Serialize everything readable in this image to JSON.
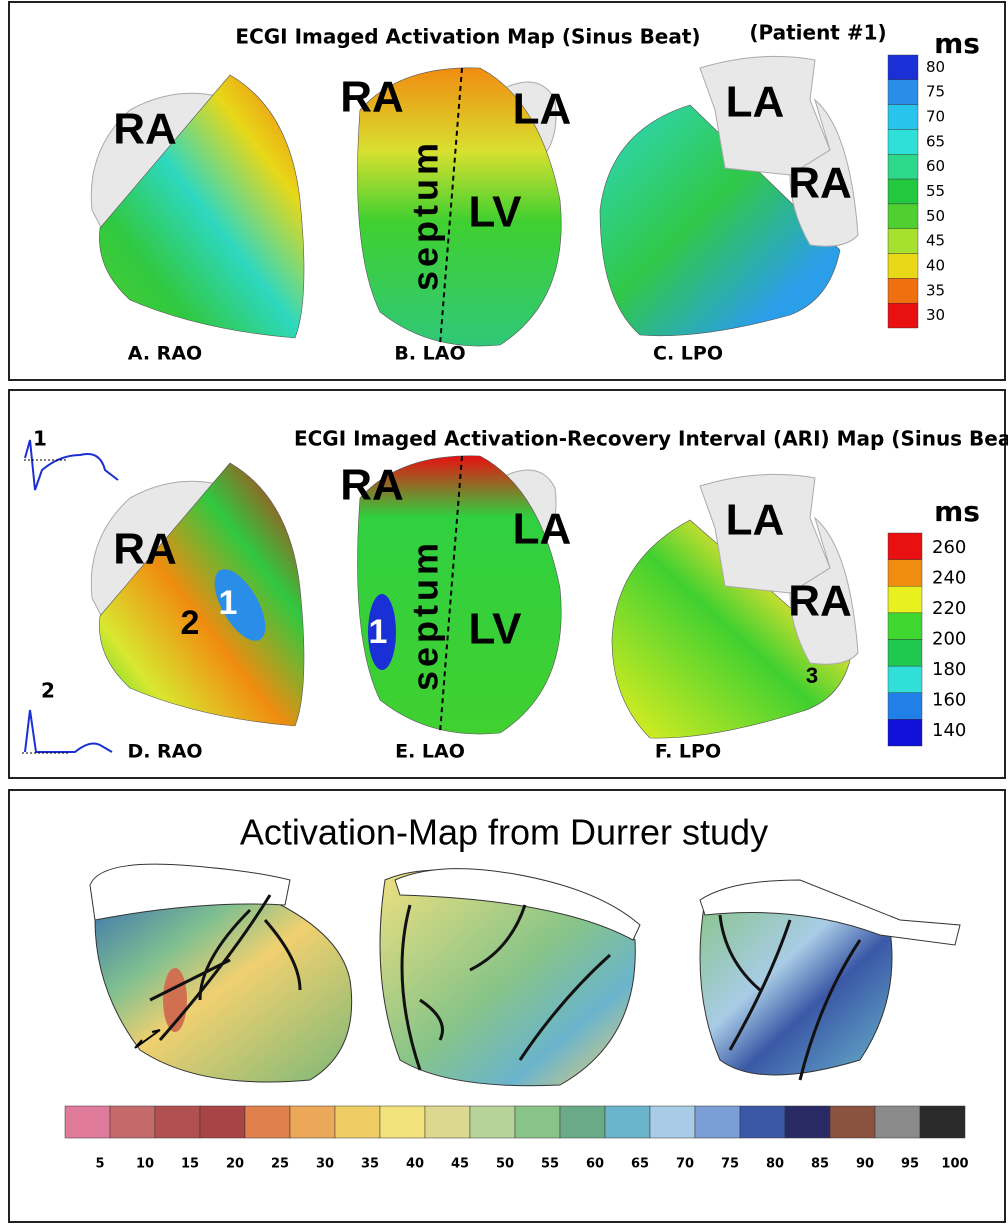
{
  "figure": {
    "panels": [
      {
        "title": "ECGI Imaged Activation Map (Sinus Beat)",
        "note": "(Patient #1)",
        "unit": "ms",
        "colorbar": {
          "ticks": [
            80,
            75,
            70,
            65,
            60,
            55,
            50,
            45,
            40,
            35,
            30
          ],
          "colors": [
            "#1a2fd6",
            "#2a8ee8",
            "#28c4ec",
            "#2ee0d8",
            "#2ed88a",
            "#22c840",
            "#50d030",
            "#a8e030",
            "#e8d818",
            "#f07010",
            "#e81010"
          ]
        },
        "views": [
          {
            "caption": "A.  RAO",
            "labels": [
              "RA"
            ]
          },
          {
            "caption": "B. LAO",
            "labels": [
              "RA",
              "LA",
              "septum",
              "LV"
            ]
          },
          {
            "caption": "C. LPO",
            "labels": [
              "LA",
              "RA"
            ]
          }
        ]
      },
      {
        "title": "ECGI Imaged Activation-Recovery Interval (ARI) Map (Sinus Beat)",
        "unit": "ms",
        "insets": [
          "1",
          "2"
        ],
        "colorbar": {
          "ticks": [
            260,
            240,
            220,
            200,
            180,
            160,
            140
          ],
          "colors": [
            "#e81010",
            "#f08c10",
            "#e8f020",
            "#40d830",
            "#20c850",
            "#30e0d8",
            "#2080e8",
            "#1010d8"
          ]
        },
        "views": [
          {
            "caption": "D.  RAO",
            "labels": [
              "RA",
              "2",
              "1"
            ]
          },
          {
            "caption": "E. LAO",
            "labels": [
              "RA",
              "LA",
              "septum",
              "LV",
              "1"
            ]
          },
          {
            "caption": "F. LPO",
            "labels": [
              "LA",
              "RA",
              "3"
            ]
          }
        ]
      },
      {
        "title": "Activation-Map from Durrer study",
        "colorbar": {
          "ticks": [
            5,
            10,
            15,
            20,
            25,
            30,
            35,
            40,
            45,
            50,
            55,
            60,
            65,
            70,
            75,
            80,
            85,
            90,
            95,
            100
          ],
          "colors": [
            "#e07a9a",
            "#c46a6a",
            "#b05050",
            "#a84444",
            "#e0804c",
            "#eaa858",
            "#f0cc64",
            "#f2e27c",
            "#dcd890",
            "#b6d49a",
            "#88c488",
            "#6aaa86",
            "#6ab4cc",
            "#a8cce6",
            "#7c9ed6",
            "#3a58a6",
            "#2a2a66",
            "#8c5240",
            "#8a8a8a",
            "#2a2a2a"
          ]
        }
      }
    ]
  }
}
